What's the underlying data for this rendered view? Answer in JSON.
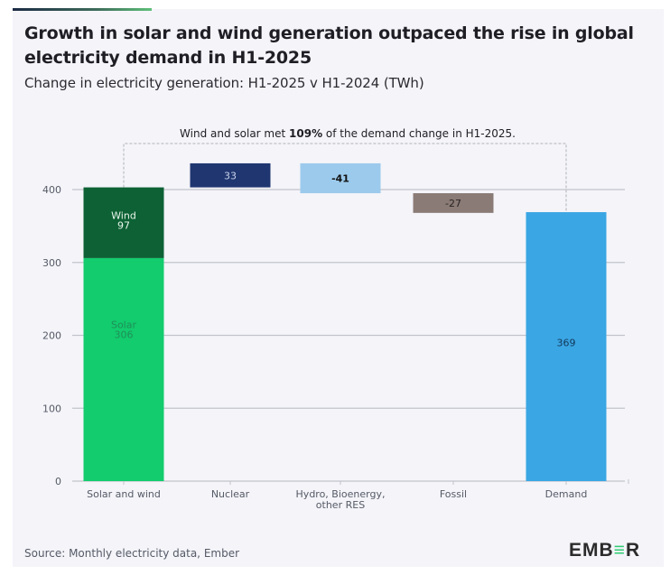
{
  "header": {
    "title": "Growth in solar and wind generation outpaced the rise in global electricity demand in H1-2025",
    "subtitle": "Change in electricity generation: H1-2025 v H1-2024 (TWh)"
  },
  "footer": {
    "source": "Source: Monthly electricity data, Ember",
    "logo": {
      "part1": "EMB",
      "part2": "≡",
      "part3": "R"
    }
  },
  "chart_data": {
    "type": "bar",
    "subtype": "waterfall",
    "title": "Growth in solar and wind generation outpaced the rise in global electricity demand in H1-2025",
    "subtitle": "Change in electricity generation: H1-2025 v H1-2024 (TWh)",
    "xlabel": "",
    "ylabel": "TWh",
    "ylim": [
      0,
      420
    ],
    "yticks": [
      0,
      100,
      200,
      300,
      400
    ],
    "grid": true,
    "categories": [
      "Solar and wind",
      "Nuclear",
      "Hydro, Bioenergy, other RES",
      "Fossil",
      "Demand"
    ],
    "category_lines": [
      [
        "Solar and wind"
      ],
      [
        "Nuclear"
      ],
      [
        "Hydro, Bioenergy,",
        "other RES"
      ],
      [
        "Fossil"
      ],
      [
        "Demand"
      ]
    ],
    "bars": [
      {
        "category": "Solar and wind",
        "segments": [
          {
            "name": "Solar",
            "start": 0,
            "end": 306,
            "value": 306,
            "label": "Solar\n306",
            "color": "#12cc6e",
            "label_color": "#1f8f58"
          },
          {
            "name": "Wind",
            "start": 306,
            "end": 403,
            "value": 97,
            "label": "Wind\n97",
            "color": "#0d6134",
            "label_color": "#e8f5ec"
          }
        ]
      },
      {
        "category": "Nuclear",
        "segments": [
          {
            "name": "Nuclear",
            "start": 403,
            "end": 436,
            "value": 33,
            "label": "33",
            "color": "#1f3670",
            "label_color": "#c9d3ea"
          }
        ]
      },
      {
        "category": "Hydro, Bioenergy, other RES",
        "segments": [
          {
            "name": "Hydro, Bioenergy, other RES",
            "start": 436,
            "end": 395,
            "value": -41,
            "label": "-41",
            "color": "#9ccaec",
            "label_color": "#111111",
            "bold": true
          }
        ]
      },
      {
        "category": "Fossil",
        "segments": [
          {
            "name": "Fossil",
            "start": 395,
            "end": 368,
            "value": -27,
            "label": "-27",
            "color": "#8a7b76",
            "label_color": "#2a2322"
          }
        ]
      },
      {
        "category": "Demand",
        "segments": [
          {
            "name": "Demand",
            "start": 0,
            "end": 369,
            "value": 369,
            "label": "369",
            "color": "#3aa6e4",
            "label_color": "#12385a"
          }
        ]
      }
    ],
    "annotation": {
      "prefix": "Wind and solar met ",
      "highlight": "109%",
      "suffix": " of the demand change in H1-2025.",
      "connects": [
        "Solar and wind",
        "Demand"
      ]
    },
    "colors": {
      "grid": "#c2c4cc",
      "axis_text": "#555a66",
      "annotation_line": "#b0b2b8"
    }
  }
}
